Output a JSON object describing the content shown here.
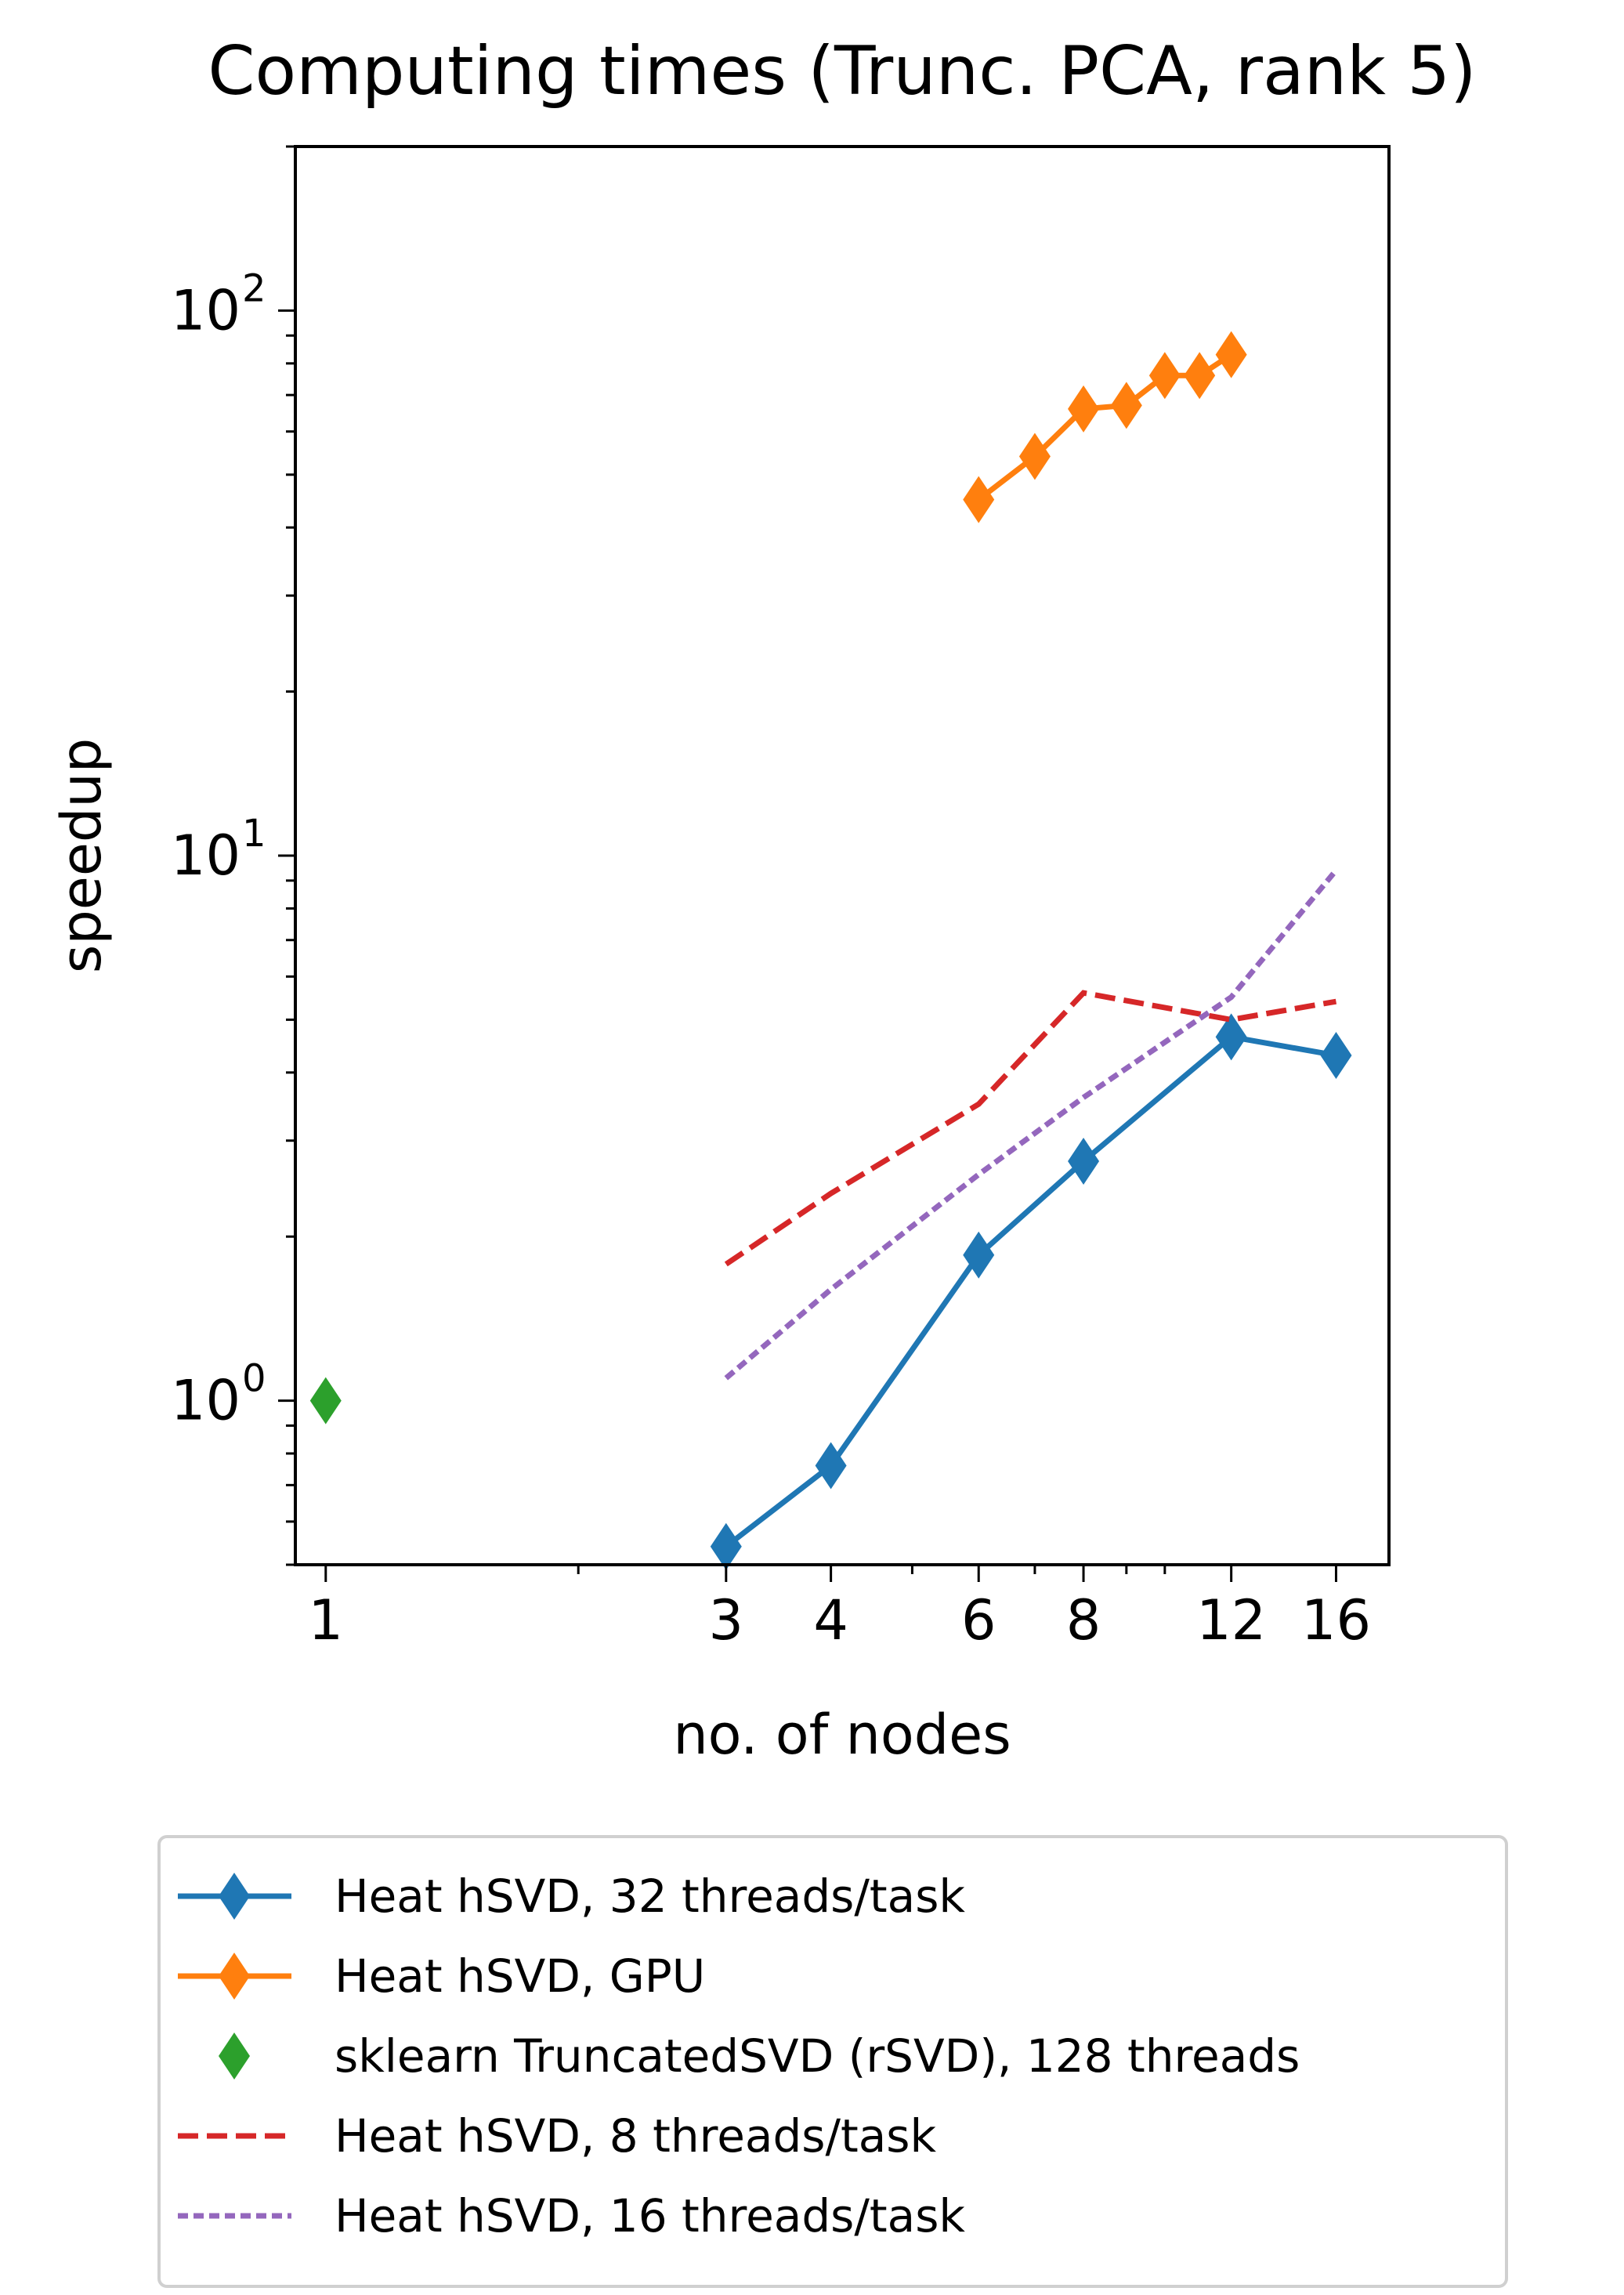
{
  "chart_data": {
    "type": "line",
    "title": "Computing times (Trunc. PCA, rank 5)",
    "xlabel": "no. of nodes",
    "ylabel": "speedup",
    "xscale": "log",
    "yscale": "log",
    "xlim": [
      0.92,
      18.5
    ],
    "ylim": [
      0.5,
      200
    ],
    "xticks": [
      1,
      3,
      4,
      6,
      8,
      12,
      16
    ],
    "xtick_labels": [
      "1",
      "3",
      "4",
      "6",
      "8",
      "12",
      "16"
    ],
    "yticks": [
      1,
      10,
      100
    ],
    "ytick_labels": [
      {
        "base": "10",
        "exp": "0"
      },
      {
        "base": "10",
        "exp": "1"
      },
      {
        "base": "10",
        "exp": "2"
      }
    ],
    "grid": false,
    "legend_position": "below",
    "series": [
      {
        "name": "Heat hSVD, 32 threads/task",
        "color": "#1f77b4",
        "style": "solid",
        "marker": "diamond",
        "x": [
          3,
          4,
          6,
          8,
          12,
          16
        ],
        "y": [
          0.54,
          0.76,
          1.85,
          2.75,
          4.65,
          4.3
        ]
      },
      {
        "name": "Heat hSVD, GPU",
        "color": "#ff7f0e",
        "style": "solid",
        "marker": "diamond",
        "x": [
          6,
          7,
          8,
          9,
          10,
          11,
          12
        ],
        "y": [
          45,
          54,
          66,
          67,
          76,
          76,
          83
        ]
      },
      {
        "name": "sklearn TruncatedSVD (rSVD), 128 threads",
        "color": "#2ca02c",
        "style": "none",
        "marker": "diamond",
        "x": [
          1
        ],
        "y": [
          1.0
        ]
      },
      {
        "name": "Heat hSVD, 8 threads/task",
        "color": "#d62728",
        "style": "dashed",
        "marker": "none",
        "x": [
          3,
          4,
          6,
          8,
          12,
          16
        ],
        "y": [
          1.78,
          2.4,
          3.5,
          5.6,
          5.0,
          5.4
        ]
      },
      {
        "name": "Heat hSVD, 16 threads/task",
        "color": "#9467bd",
        "style": "dotted",
        "marker": "none",
        "x": [
          3,
          4,
          6,
          8,
          12,
          16
        ],
        "y": [
          1.1,
          1.6,
          2.6,
          3.6,
          5.5,
          9.4
        ]
      }
    ]
  }
}
